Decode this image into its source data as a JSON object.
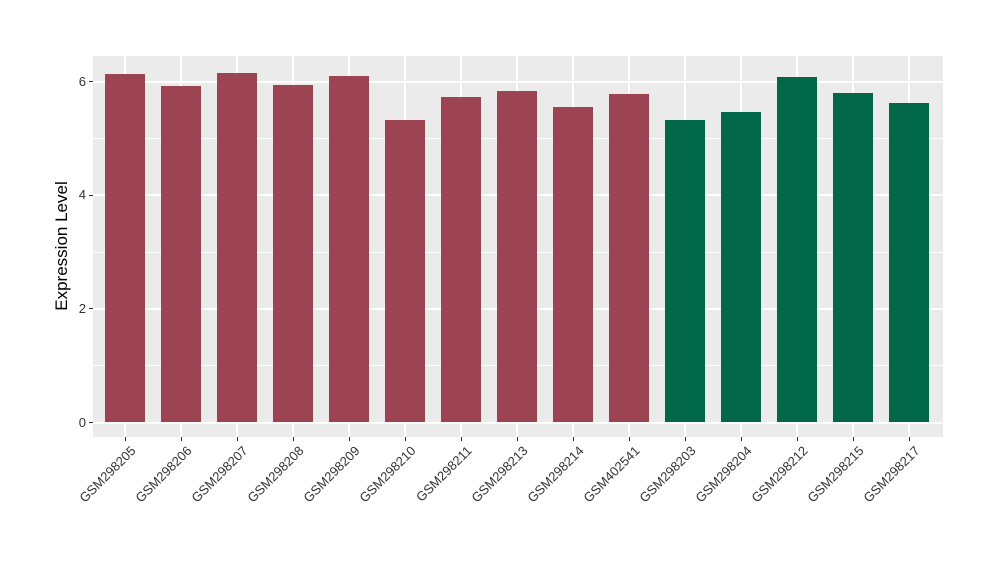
{
  "chart_data": {
    "type": "bar",
    "title": "",
    "xlabel": "",
    "ylabel": "Expression Level",
    "categories": [
      "GSM298205",
      "GSM298206",
      "GSM298207",
      "GSM298208",
      "GSM298209",
      "GSM298210",
      "GSM298211",
      "GSM298213",
      "GSM298214",
      "GSM402541",
      "GSM298203",
      "GSM298204",
      "GSM298212",
      "GSM298215",
      "GSM298217"
    ],
    "values": [
      6.14,
      5.92,
      6.16,
      5.95,
      6.11,
      5.33,
      5.74,
      5.83,
      5.56,
      5.78,
      5.32,
      5.46,
      6.08,
      5.81,
      5.63
    ],
    "bar_colors": [
      "#9C4451",
      "#9C4451",
      "#9C4451",
      "#9C4451",
      "#9C4451",
      "#9C4451",
      "#9C4451",
      "#9C4451",
      "#9C4451",
      "#9C4451",
      "#006848",
      "#006848",
      "#006848",
      "#006848",
      "#006848"
    ],
    "group_colors": {
      "left_group": "#9C4451",
      "right_group": "#006848"
    },
    "yticks": [
      0,
      2,
      4,
      6
    ],
    "minor_yticks": [
      1,
      3,
      5
    ],
    "ylim": [
      0,
      6.45
    ],
    "x_tick_angle_deg": 45,
    "grid": true,
    "legend": "none",
    "panel_bg": "#EBEBEB",
    "grid_color": "#FFFFFF",
    "tick_text_color": "#333333",
    "axis_title_color": "#000000"
  }
}
